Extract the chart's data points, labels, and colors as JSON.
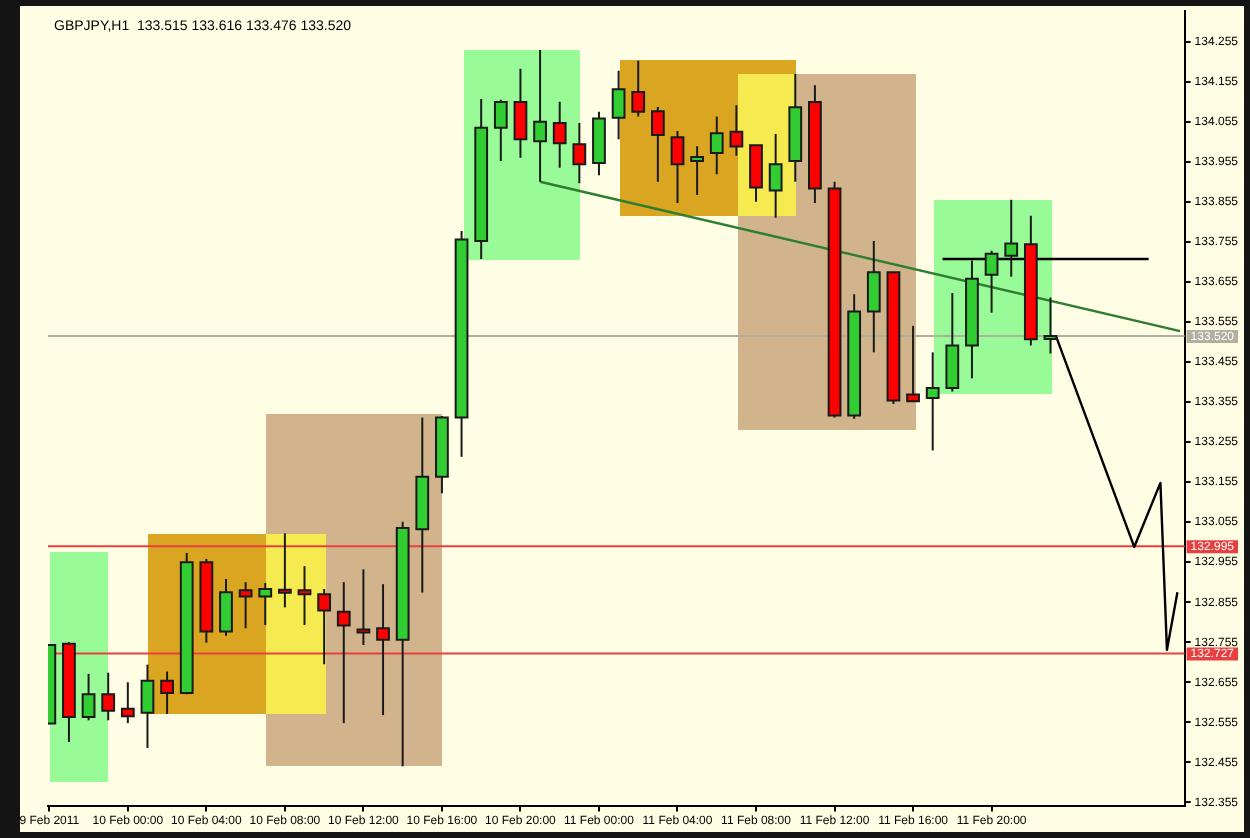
{
  "chart_data": {
    "type": "candlestick",
    "title": "GBPJPY,H1  133.515 133.616 133.476 133.520",
    "x": [
      "2011-02-09T20:00",
      "2011-02-09T21:00",
      "2011-02-09T22:00",
      "2011-02-09T23:00",
      "2011-02-10T00:00",
      "2011-02-10T01:00",
      "2011-02-10T02:00",
      "2011-02-10T03:00",
      "2011-02-10T04:00",
      "2011-02-10T05:00",
      "2011-02-10T06:00",
      "2011-02-10T07:00",
      "2011-02-10T08:00",
      "2011-02-10T09:00",
      "2011-02-10T10:00",
      "2011-02-10T11:00",
      "2011-02-10T12:00",
      "2011-02-10T13:00",
      "2011-02-10T14:00",
      "2011-02-10T15:00",
      "2011-02-10T16:00",
      "2011-02-10T17:00",
      "2011-02-10T18:00",
      "2011-02-10T19:00",
      "2011-02-10T20:00",
      "2011-02-10T21:00",
      "2011-02-10T22:00",
      "2011-02-10T23:00",
      "2011-02-11T00:00",
      "2011-02-11T01:00",
      "2011-02-11T02:00",
      "2011-02-11T03:00",
      "2011-02-11T04:00",
      "2011-02-11T05:00",
      "2011-02-11T06:00",
      "2011-02-11T07:00",
      "2011-02-11T08:00",
      "2011-02-11T09:00",
      "2011-02-11T10:00",
      "2011-02-11T11:00",
      "2011-02-11T12:00",
      "2011-02-11T13:00",
      "2011-02-11T14:00",
      "2011-02-11T15:00",
      "2011-02-11T16:00",
      "2011-02-11T17:00",
      "2011-02-11T18:00",
      "2011-02-11T19:00",
      "2011-02-11T20:00",
      "2011-02-11T21:00",
      "2011-02-11T22:00",
      "2011-02-11T23:00"
    ],
    "ohlc": [
      [
        132.552,
        132.75,
        132.55,
        132.748
      ],
      [
        132.751,
        132.755,
        132.506,
        132.568
      ],
      [
        132.568,
        132.676,
        132.56,
        132.625
      ],
      [
        132.625,
        132.679,
        132.56,
        132.584
      ],
      [
        132.589,
        132.655,
        132.553,
        132.57
      ],
      [
        132.579,
        132.699,
        132.491,
        132.659
      ],
      [
        132.659,
        132.682,
        132.576,
        132.628
      ],
      [
        132.628,
        132.978,
        132.625,
        132.955
      ],
      [
        132.955,
        132.963,
        132.754,
        132.782
      ],
      [
        132.782,
        132.913,
        132.771,
        132.88
      ],
      [
        132.885,
        132.905,
        132.79,
        132.869
      ],
      [
        132.869,
        132.903,
        132.798,
        132.888
      ],
      [
        132.886,
        133.027,
        132.842,
        132.88
      ],
      [
        132.885,
        132.945,
        132.798,
        132.875
      ],
      [
        132.875,
        132.888,
        132.7,
        132.834
      ],
      [
        132.831,
        132.905,
        132.553,
        132.797
      ],
      [
        132.787,
        132.937,
        132.748,
        132.78
      ],
      [
        132.79,
        132.9,
        132.573,
        132.761
      ],
      [
        132.761,
        133.056,
        132.445,
        133.04
      ],
      [
        133.037,
        133.316,
        132.879,
        133.168
      ],
      [
        133.168,
        133.32,
        133.127,
        133.316
      ],
      [
        133.316,
        133.782,
        133.218,
        133.761
      ],
      [
        133.757,
        134.112,
        133.712,
        134.04
      ],
      [
        134.04,
        134.11,
        133.957,
        134.104
      ],
      [
        134.104,
        134.187,
        133.965,
        134.011
      ],
      [
        134.006,
        134.234,
        133.905,
        134.055
      ],
      [
        134.052,
        134.105,
        133.94,
        134.001
      ],
      [
        133.999,
        134.052,
        133.901,
        133.949
      ],
      [
        133.952,
        134.08,
        133.921,
        134.063
      ],
      [
        134.065,
        134.182,
        134.011,
        134.136
      ],
      [
        134.129,
        134.207,
        134.068,
        134.08
      ],
      [
        134.081,
        134.092,
        133.905,
        134.022
      ],
      [
        134.016,
        134.032,
        133.852,
        133.949
      ],
      [
        133.957,
        133.994,
        133.872,
        133.967
      ],
      [
        133.977,
        134.068,
        133.924,
        134.026
      ],
      [
        134.03,
        134.096,
        133.97,
        133.993
      ],
      [
        133.996,
        133.996,
        133.855,
        133.891
      ],
      [
        133.883,
        134.024,
        133.815,
        133.949
      ],
      [
        133.957,
        134.174,
        133.905,
        134.091
      ],
      [
        134.104,
        134.146,
        133.852,
        133.888
      ],
      [
        133.888,
        133.905,
        133.316,
        133.321
      ],
      [
        133.321,
        133.624,
        133.313,
        133.581
      ],
      [
        133.581,
        133.757,
        133.479,
        133.679
      ],
      [
        133.679,
        133.679,
        133.35,
        133.359
      ],
      [
        133.374,
        133.545,
        133.355,
        133.357
      ],
      [
        133.365,
        133.479,
        133.234,
        133.39
      ],
      [
        133.39,
        133.627,
        133.381,
        133.496
      ],
      [
        133.496,
        133.708,
        133.414,
        133.663
      ],
      [
        133.673,
        133.733,
        133.578,
        133.725
      ],
      [
        133.72,
        133.86,
        133.668,
        133.751
      ],
      [
        133.749,
        133.82,
        133.496,
        133.512
      ],
      [
        133.515,
        133.616,
        133.476,
        133.52
      ]
    ],
    "colors": [
      "#32cd32",
      "#ff0000",
      "#32cd32",
      "#ff0000",
      "#ff0000",
      "#32cd32",
      "#ff0000",
      "#32cd32",
      "#ff0000",
      "#32cd32",
      "#ff0000",
      "#32cd32",
      "#ff0000",
      "#ff0000",
      "#ff0000",
      "#ff0000",
      "#ff0000",
      "#ff0000",
      "#32cd32",
      "#32cd32",
      "#32cd32",
      "#32cd32",
      "#32cd32",
      "#32cd32",
      "#ff0000",
      "#32cd32",
      "#ff0000",
      "#ff0000",
      "#32cd32",
      "#32cd32",
      "#ff0000",
      "#ff0000",
      "#ff0000",
      "#32cd32",
      "#32cd32",
      "#ff0000",
      "#ff0000",
      "#32cd32",
      "#32cd32",
      "#ff0000",
      "#ff0000",
      "#32cd32",
      "#32cd32",
      "#ff0000",
      "#ff0000",
      "#32cd32",
      "#32cd32",
      "#32cd32",
      "#32cd32",
      "#32cd32",
      "#ff0000",
      "#32cd32"
    ],
    "series": [
      {
        "type": "line",
        "color": "#2e7d32",
        "x": [
          "2011-02-10T21:00",
          "2011-02-12T05:36"
        ],
        "values": [
          133.905,
          133.532
        ]
      },
      {
        "type": "line",
        "color": "#000000",
        "x": [
          "2011-02-11T17:30",
          "2011-02-12T04:00"
        ],
        "values": [
          133.712,
          133.712
        ]
      },
      {
        "type": "line",
        "color": "#000000",
        "x": [
          "2011-02-11T23:18",
          "2011-02-12T03:16",
          "2011-02-12T04:36",
          "2011-02-12T04:56",
          "2011-02-12T05:28"
        ],
        "values": [
          133.517,
          132.993,
          133.153,
          132.736,
          132.88
        ]
      }
    ],
    "xlim": [
      "2011-02-09T19:56",
      "2011-02-12T05:50"
    ],
    "xticks": [
      {
        "value": "2011-02-09T20:00",
        "label": "9 Feb 2011"
      },
      {
        "value": "2011-02-10T00:00",
        "label": "10 Feb 00:00"
      },
      {
        "value": "2011-02-10T04:00",
        "label": "10 Feb 04:00"
      },
      {
        "value": "2011-02-10T08:00",
        "label": "10 Feb 08:00"
      },
      {
        "value": "2011-02-10T12:00",
        "label": "10 Feb 12:00"
      },
      {
        "value": "2011-02-10T16:00",
        "label": "10 Feb 16:00"
      },
      {
        "value": "2011-02-10T20:00",
        "label": "10 Feb 20:00"
      },
      {
        "value": "2011-02-11T00:00",
        "label": "11 Feb 00:00"
      },
      {
        "value": "2011-02-11T04:00",
        "label": "11 Feb 04:00"
      },
      {
        "value": "2011-02-11T08:00",
        "label": "11 Feb 08:00"
      },
      {
        "value": "2011-02-11T12:00",
        "label": "11 Feb 12:00"
      },
      {
        "value": "2011-02-11T16:00",
        "label": "11 Feb 16:00"
      },
      {
        "value": "2011-02-11T20:00",
        "label": "11 Feb 20:00"
      }
    ],
    "ylim": [
      132.347,
      134.331
    ],
    "yticks": [
      {
        "value": 132.355,
        "label": "132.355"
      },
      {
        "value": 132.455,
        "label": "132.455"
      },
      {
        "value": 132.555,
        "label": "132.555"
      },
      {
        "value": 132.655,
        "label": "132.655"
      },
      {
        "value": 132.755,
        "label": "132.755"
      },
      {
        "value": 132.855,
        "label": "132.855"
      },
      {
        "value": 132.955,
        "label": "132.955"
      },
      {
        "value": 133.055,
        "label": "133.055"
      },
      {
        "value": 133.155,
        "label": "133.155"
      },
      {
        "value": 133.255,
        "label": "133.255"
      },
      {
        "value": 133.355,
        "label": "133.355"
      },
      {
        "value": 133.455,
        "label": "133.455"
      },
      {
        "value": 133.555,
        "label": "133.555"
      },
      {
        "value": 133.655,
        "label": "133.655"
      },
      {
        "value": 133.755,
        "label": "133.755"
      },
      {
        "value": 133.855,
        "label": "133.855"
      },
      {
        "value": 133.955,
        "label": "133.955"
      },
      {
        "value": 134.055,
        "label": "134.055"
      },
      {
        "value": 134.155,
        "label": "134.155"
      },
      {
        "value": 134.255,
        "label": "134.255"
      }
    ],
    "ref_lines": [
      {
        "axis": "y",
        "value": 133.52,
        "label": "133.520",
        "color": "#b0b0a0"
      },
      {
        "axis": "y",
        "value": 132.995,
        "label": "132.995",
        "color": "#e84040"
      },
      {
        "axis": "y",
        "value": 132.727,
        "label": "132.727",
        "color": "#e84040"
      }
    ]
  }
}
